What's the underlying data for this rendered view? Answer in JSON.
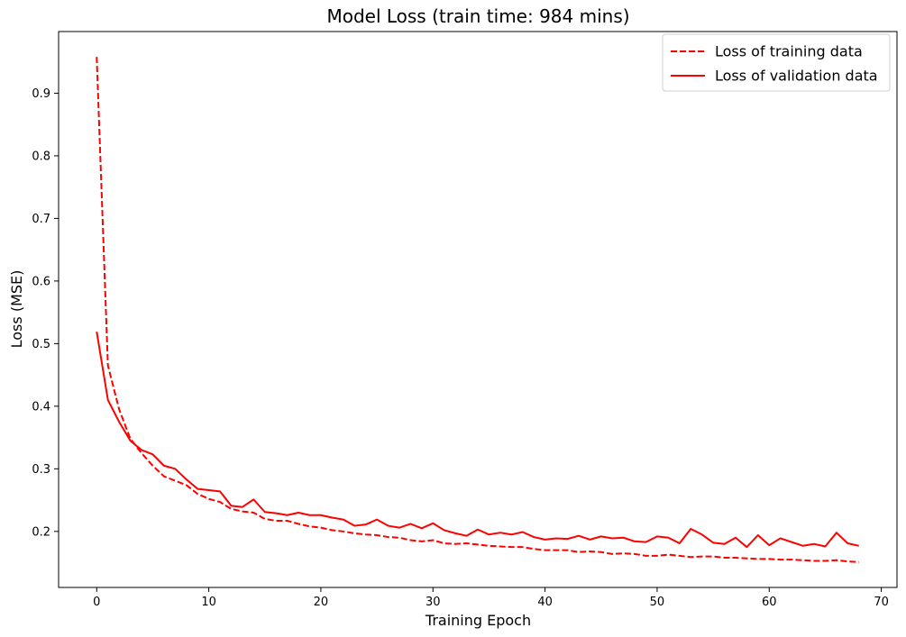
{
  "chart_data": {
    "type": "line",
    "title": "Model Loss (train time: 984 mins)",
    "xlabel": "Training Epoch",
    "ylabel": "Loss (MSE)",
    "xlim": [
      -3.4,
      71.4
    ],
    "ylim": [
      0.1105,
      0.9985
    ],
    "xticks": [
      0,
      10,
      20,
      30,
      40,
      50,
      60,
      70
    ],
    "yticks": [
      0.2,
      0.3,
      0.4,
      0.5,
      0.6,
      0.7,
      0.8,
      0.9
    ],
    "xtick_labels": [
      "0",
      "10",
      "20",
      "30",
      "40",
      "50",
      "60",
      "70"
    ],
    "ytick_labels": [
      "0.2",
      "0.3",
      "0.4",
      "0.5",
      "0.6",
      "0.7",
      "0.8",
      "0.9"
    ],
    "grid": false,
    "legend_position": "top-right",
    "series": [
      {
        "name": "Loss of training data",
        "color": "#ff0000",
        "style": "dashed",
        "x": [
          0,
          1,
          2,
          3,
          4,
          5,
          6,
          7,
          8,
          9,
          10,
          11,
          12,
          13,
          14,
          15,
          16,
          17,
          18,
          19,
          20,
          21,
          22,
          23,
          24,
          25,
          26,
          27,
          28,
          29,
          30,
          31,
          32,
          33,
          34,
          35,
          36,
          37,
          38,
          39,
          40,
          41,
          42,
          43,
          44,
          45,
          46,
          47,
          48,
          49,
          50,
          51,
          52,
          53,
          54,
          55,
          56,
          57,
          58,
          59,
          60,
          61,
          62,
          63,
          64,
          65,
          66,
          67,
          68
        ],
        "values": [
          0.958,
          0.465,
          0.395,
          0.348,
          0.325,
          0.305,
          0.288,
          0.281,
          0.274,
          0.26,
          0.252,
          0.247,
          0.236,
          0.232,
          0.23,
          0.22,
          0.217,
          0.217,
          0.212,
          0.208,
          0.206,
          0.202,
          0.2,
          0.197,
          0.195,
          0.194,
          0.191,
          0.19,
          0.186,
          0.184,
          0.186,
          0.181,
          0.18,
          0.181,
          0.179,
          0.177,
          0.176,
          0.175,
          0.175,
          0.172,
          0.17,
          0.17,
          0.17,
          0.167,
          0.168,
          0.167,
          0.164,
          0.165,
          0.164,
          0.161,
          0.161,
          0.163,
          0.161,
          0.159,
          0.16,
          0.16,
          0.158,
          0.158,
          0.157,
          0.156,
          0.156,
          0.155,
          0.155,
          0.154,
          0.153,
          0.153,
          0.154,
          0.152,
          0.151
        ]
      },
      {
        "name": "Loss of validation data",
        "color": "#ff0000",
        "style": "solid",
        "x": [
          0,
          1,
          2,
          3,
          4,
          5,
          6,
          7,
          8,
          9,
          10,
          11,
          12,
          13,
          14,
          15,
          16,
          17,
          18,
          19,
          20,
          21,
          22,
          23,
          24,
          25,
          26,
          27,
          28,
          29,
          30,
          31,
          32,
          33,
          34,
          35,
          36,
          37,
          38,
          39,
          40,
          41,
          42,
          43,
          44,
          45,
          46,
          47,
          48,
          49,
          50,
          51,
          52,
          53,
          54,
          55,
          56,
          57,
          58,
          59,
          60,
          61,
          62,
          63,
          64,
          65,
          66,
          67,
          68
        ],
        "values": [
          0.519,
          0.41,
          0.375,
          0.345,
          0.33,
          0.323,
          0.305,
          0.3,
          0.283,
          0.268,
          0.266,
          0.264,
          0.241,
          0.239,
          0.251,
          0.231,
          0.229,
          0.226,
          0.23,
          0.226,
          0.226,
          0.222,
          0.219,
          0.209,
          0.211,
          0.219,
          0.209,
          0.206,
          0.212,
          0.205,
          0.213,
          0.202,
          0.197,
          0.193,
          0.203,
          0.195,
          0.198,
          0.195,
          0.199,
          0.191,
          0.187,
          0.189,
          0.188,
          0.193,
          0.187,
          0.192,
          0.189,
          0.19,
          0.184,
          0.183,
          0.192,
          0.19,
          0.181,
          0.204,
          0.195,
          0.182,
          0.18,
          0.19,
          0.175,
          0.194,
          0.178,
          0.189,
          0.183,
          0.177,
          0.18,
          0.176,
          0.198,
          0.181,
          0.177
        ]
      }
    ]
  }
}
